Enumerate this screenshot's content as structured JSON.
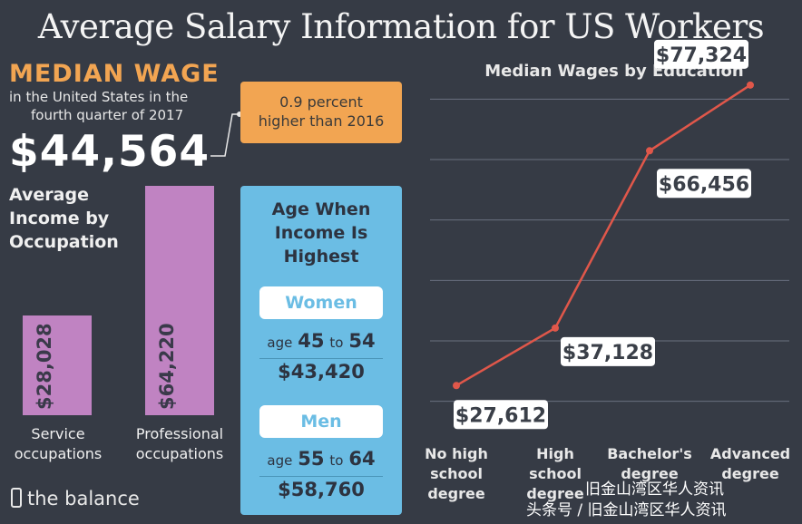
{
  "title": "Average Salary Information for US Workers",
  "median_wage": {
    "heading": "MEDIAN WAGE",
    "line1": "in the United States in the",
    "line2": "fourth quarter of 2017",
    "value": "$44,564",
    "callout_line1": "0.9 percent",
    "callout_line2": "higher than 2016"
  },
  "occupation": {
    "title_line1": "Average",
    "title_line2": "Income by",
    "title_line3": "Occupation",
    "bars": [
      {
        "label_line1": "Service",
        "label_line2": "occupations",
        "value_label": "$28,028",
        "value": 28028
      },
      {
        "label_line1": "Professional",
        "label_line2": "occupations",
        "value_label": "$64,220",
        "value": 64220
      }
    ]
  },
  "age_panel": {
    "title_line1": "Age When",
    "title_line2": "Income Is",
    "title_line3": "Highest",
    "groups": [
      {
        "name": "Women",
        "age_prefix": "age",
        "age_from": "45",
        "age_to_word": "to",
        "age_to": "54",
        "amount": "$43,420"
      },
      {
        "name": "Men",
        "age_prefix": "age",
        "age_from": "55",
        "age_to_word": "to",
        "age_to": "64",
        "amount": "$58,760"
      }
    ]
  },
  "chart_data": {
    "type": "line",
    "title": "Median Wages by Education",
    "categories": [
      "No high school degree",
      "High school degree",
      "Bachelor's degree",
      "Advanced degree"
    ],
    "category_lines": [
      [
        "No high",
        "school",
        "degree"
      ],
      [
        "High",
        "school",
        "degree"
      ],
      [
        "Bachelor's",
        "degree"
      ],
      [
        "Advanced",
        "degree"
      ]
    ],
    "values": [
      27612,
      37128,
      66456,
      77324
    ],
    "value_labels": [
      "$27,612",
      "$37,128",
      "$66,456",
      "$77,324"
    ],
    "ylim": [
      20000,
      80000
    ],
    "grid": true,
    "line_color": "#e0574a"
  },
  "branding": {
    "name": "the balance"
  },
  "watermark": {
    "line1": "旧金山湾区华人资讯",
    "line2": "头条号 / 旧金山湾区华人资讯"
  }
}
